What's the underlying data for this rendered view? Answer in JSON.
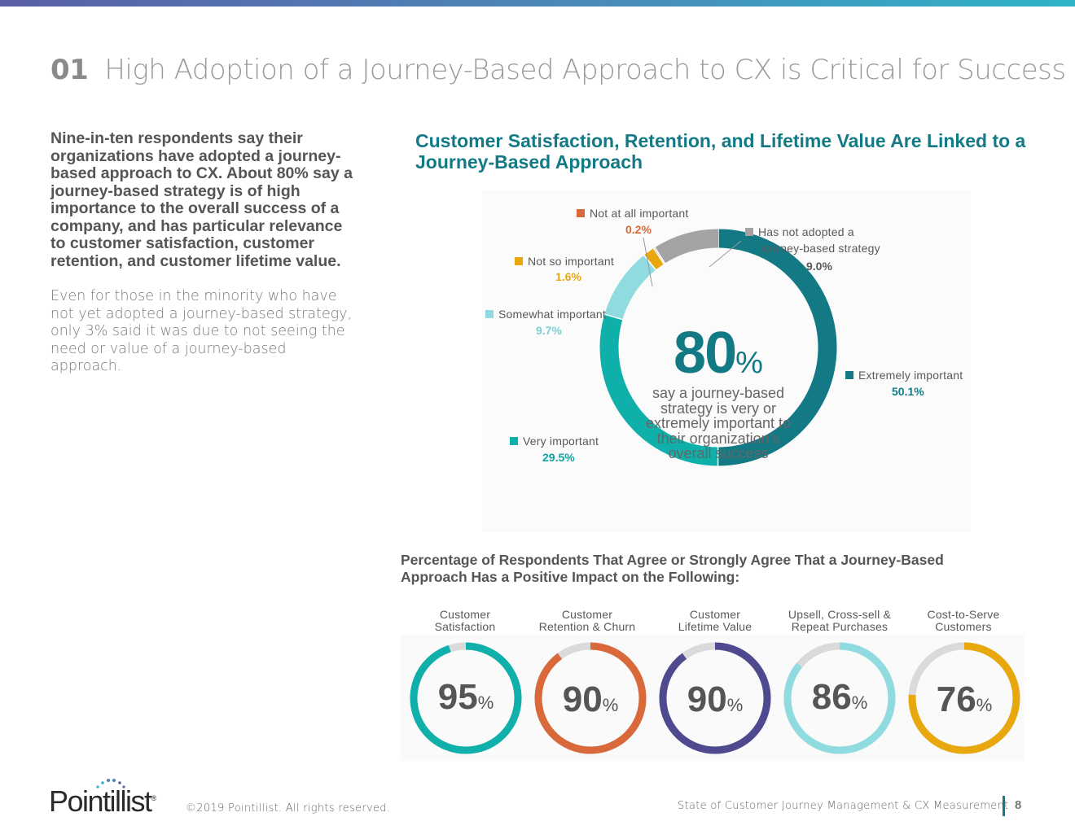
{
  "header": {
    "section_number": "01",
    "title": "High Adoption of a Journey-Based Approach to CX is Critical for Success"
  },
  "intro": {
    "lead": "Nine-in-ten respondents say their organizations have adopted a journey-based approach to CX. About 80% say a journey-based strategy is of high importance to the overall success of a company, and has particular relevance to customer satisfaction, customer retention, and customer lifetime value.",
    "body": "Even for those in the minority who have not yet adopted a journey-based strategy, only 3% said it was due to not seeing the need or value of a journey-based approach."
  },
  "main_chart": {
    "title": "Customer Satisfaction, Retention, and Lifetime Value Are Linked to a Journey-Based Approach",
    "center_value": "80",
    "center_symbol": "%",
    "center_text": "say a journey-based strategy is very or extremely important to their organization’s overall success"
  },
  "sub_chart": {
    "title": "Percentage of Respondents That Agree or Strongly Agree That a Journey-Based Approach Has a Positive Impact on the Following:",
    "percent_symbol": "%"
  },
  "chart_data": [
    {
      "type": "pie",
      "variant": "donut",
      "title": "Customer Satisfaction, Retention, and Lifetime Value Are Linked to a Journey-Based Approach",
      "series": [
        {
          "name": "Extremely important",
          "value": 50.1,
          "label": "50.1%",
          "color": "#137a85"
        },
        {
          "name": "Very important",
          "value": 29.5,
          "label": "29.5%",
          "color": "#0fb0aa"
        },
        {
          "name": "Somewhat important",
          "value": 9.7,
          "label": "9.7%",
          "color": "#8fdbe0"
        },
        {
          "name": "Not so important",
          "value": 1.6,
          "label": "1.6%",
          "color": "#e8a70c"
        },
        {
          "name": "Not at all important",
          "value": 0.2,
          "label": "0.2%",
          "color": "#d9693a"
        },
        {
          "name": "Has not adopted a journey-based strategy",
          "value": 9.0,
          "label": "9.0%",
          "color": "#a3a3a3"
        }
      ]
    },
    {
      "type": "pie",
      "variant": "ring-gauges",
      "title": "Percentage of Respondents That Agree or Strongly Agree That a Journey-Based Approach Has a Positive Impact on the Following:",
      "categories": [
        "Customer Satisfaction",
        "Customer Retention & Churn",
        "Customer Lifetime Value",
        "Upsell, Cross-sell & Repeat Purchases",
        "Cost-to-Serve Customers"
      ],
      "values": [
        95,
        90,
        90,
        86,
        76
      ],
      "colors": [
        "#0fb0aa",
        "#d9693a",
        "#4f4a8f",
        "#8fdbe0",
        "#e8a70c"
      ],
      "remainder_color": "#dadada"
    }
  ],
  "rings": [
    {
      "label_line1": "Customer",
      "label_line2": "Satisfaction",
      "value": "95"
    },
    {
      "label_line1": "Customer",
      "label_line2": "Retention & Churn",
      "value": "90"
    },
    {
      "label_line1": "Customer",
      "label_line2": "Lifetime Value",
      "value": "90"
    },
    {
      "label_line1": "Upsell, Cross-sell &",
      "label_line2": "Repeat Purchases",
      "value": "86"
    },
    {
      "label_line1": "Cost-to-Serve",
      "label_line2": "Customers",
      "value": "76"
    }
  ],
  "main_labels": {
    "not_at_all": {
      "name": "Not at all important",
      "value": "0.2%"
    },
    "not_adopted": {
      "line1": "Has not adopted a",
      "line2": "journey-based strategy",
      "value": "9.0%"
    },
    "not_so": {
      "name": "Not so important",
      "value": "1.6%"
    },
    "somewhat": {
      "name": "Somewhat important",
      "value": "9.7%"
    },
    "extremely": {
      "name": "Extremely important",
      "value": "50.1%"
    },
    "very": {
      "name": "Very important",
      "value": "29.5%"
    }
  },
  "footer": {
    "logo": "Pointillist",
    "logo_mark": "®",
    "copyright": "©2019 Pointillist. All rights reserved.",
    "report_title": "State of Customer Journey Management & CX Measurement",
    "page_number": "8"
  }
}
